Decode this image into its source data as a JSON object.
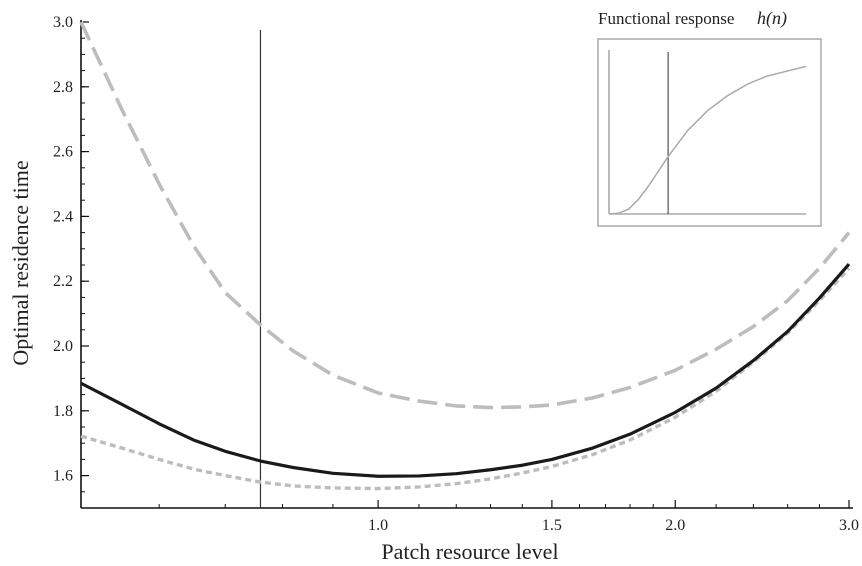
{
  "chart_data": {
    "type": "line",
    "xlabel": "Patch resource level",
    "ylabel": "Optimal residence time",
    "x_scale": "log",
    "xlim": [
      0.5,
      3.0
    ],
    "ylim": [
      1.5,
      3.0
    ],
    "x_ticks": [
      {
        "value": 1.0,
        "label": "1.0"
      },
      {
        "value": 1.5,
        "label": "1.5"
      },
      {
        "value": 2.0,
        "label": "2.0"
      },
      {
        "value": 3.0,
        "label": "3.0"
      }
    ],
    "y_ticks": [
      {
        "value": 1.6,
        "label": "1.6"
      },
      {
        "value": 1.8,
        "label": "1.8"
      },
      {
        "value": 2.0,
        "label": "2.0"
      },
      {
        "value": 2.2,
        "label": "2.2"
      },
      {
        "value": 2.4,
        "label": "2.4"
      },
      {
        "value": 2.6,
        "label": "2.6"
      },
      {
        "value": 2.8,
        "label": "2.8"
      },
      {
        "value": 3.0,
        "label": "3.0"
      }
    ],
    "vertical_line_x": 0.76,
    "grid": false,
    "series": [
      {
        "style": "solid",
        "color": "#1a1a1a",
        "x": [
          0.5,
          0.55,
          0.6,
          0.65,
          0.7,
          0.76,
          0.82,
          0.9,
          1.0,
          1.1,
          1.2,
          1.3,
          1.4,
          1.5,
          1.65,
          1.8,
          2.0,
          2.2,
          2.4,
          2.6,
          2.8,
          3.0
        ],
        "values": [
          1.885,
          1.82,
          1.76,
          1.71,
          1.675,
          1.645,
          1.625,
          1.607,
          1.598,
          1.599,
          1.606,
          1.618,
          1.632,
          1.65,
          1.685,
          1.728,
          1.795,
          1.87,
          1.955,
          2.045,
          2.148,
          2.253
        ]
      },
      {
        "style": "dashed",
        "color": "#bdbdbd",
        "x": [
          0.5,
          0.55,
          0.6,
          0.65,
          0.7,
          0.76,
          0.82,
          0.9,
          1.0,
          1.1,
          1.2,
          1.3,
          1.4,
          1.5,
          1.65,
          1.8,
          2.0,
          2.2,
          2.4,
          2.6,
          2.8,
          3.0
        ],
        "values": [
          3.0,
          2.73,
          2.5,
          2.31,
          2.165,
          2.065,
          1.985,
          1.91,
          1.855,
          1.83,
          1.815,
          1.81,
          1.812,
          1.818,
          1.84,
          1.872,
          1.925,
          1.99,
          2.06,
          2.14,
          2.24,
          2.35
        ]
      },
      {
        "style": "dotted",
        "color": "#bdbdbd",
        "x": [
          0.5,
          0.55,
          0.6,
          0.65,
          0.7,
          0.76,
          0.82,
          0.9,
          1.0,
          1.1,
          1.2,
          1.3,
          1.4,
          1.5,
          1.65,
          1.8,
          2.0,
          2.2,
          2.4,
          2.6,
          2.8,
          3.0
        ],
        "values": [
          1.722,
          1.685,
          1.65,
          1.62,
          1.6,
          1.58,
          1.568,
          1.562,
          1.56,
          1.565,
          1.575,
          1.59,
          1.608,
          1.628,
          1.665,
          1.71,
          1.78,
          1.86,
          1.95,
          2.04,
          2.14,
          2.24
        ]
      }
    ],
    "inset": {
      "title": "Functional response",
      "title_math": "h(n)",
      "vertical_line_x": 0.3,
      "curve": {
        "color": "#aaaaaa",
        "x": [
          0.0,
          0.05,
          0.1,
          0.15,
          0.2,
          0.25,
          0.3,
          0.35,
          0.4,
          0.5,
          0.6,
          0.7,
          0.8,
          0.9,
          1.0
        ],
        "values": [
          0.0,
          0.005,
          0.03,
          0.09,
          0.17,
          0.26,
          0.35,
          0.43,
          0.51,
          0.63,
          0.72,
          0.79,
          0.84,
          0.87,
          0.9
        ]
      }
    }
  }
}
